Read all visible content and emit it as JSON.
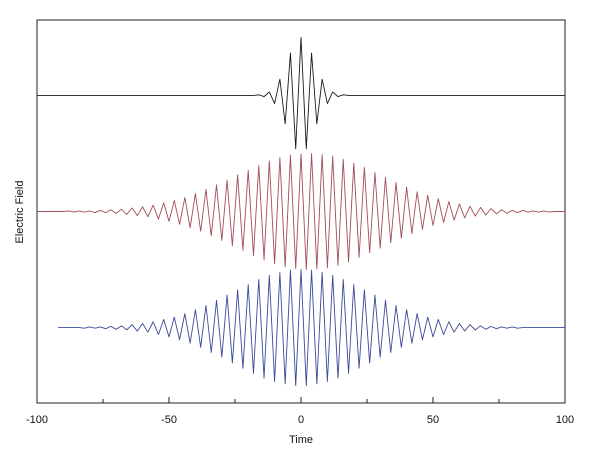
{
  "chart_data": {
    "type": "line",
    "x_label": "Time",
    "y_label": "Electric Field",
    "x": [
      -100,
      -98,
      -96,
      -94,
      -92,
      -90,
      -88,
      -86,
      -84,
      -82,
      -80,
      -78,
      -76,
      -74,
      -72,
      -70,
      -68,
      -66,
      -64,
      -62,
      -60,
      -58,
      -56,
      -54,
      -52,
      -50,
      -48,
      -46,
      -44,
      -42,
      -40,
      -38,
      -36,
      -34,
      -32,
      -30,
      -28,
      -26,
      -24,
      -22,
      -20,
      -18,
      -16,
      -14,
      -12,
      -10,
      -8,
      -6,
      -4,
      -2,
      0,
      2,
      4,
      6,
      8,
      10,
      12,
      14,
      16,
      18,
      20,
      22,
      24,
      26,
      28,
      30,
      32,
      34,
      36,
      38,
      40,
      42,
      44,
      46,
      48,
      50,
      52,
      54,
      56,
      58,
      60,
      62,
      64,
      66,
      68,
      70,
      72,
      74,
      76,
      78,
      80,
      82,
      84,
      86,
      88,
      90,
      92,
      94,
      96,
      98,
      100
    ],
    "series": [
      {
        "color": "#1a1a1a",
        "values": [
          5.3,
          5.3,
          5.3,
          5.3,
          5.3,
          5.3,
          5.3,
          5.3,
          5.3,
          5.3,
          5.3,
          5.3,
          5.3,
          5.3,
          5.3,
          5.3,
          5.3,
          5.3,
          5.3,
          5.3,
          5.3,
          5.3,
          5.3,
          5.3,
          5.3,
          5.3,
          5.3,
          5.3,
          5.3,
          5.3,
          5.3,
          5.3,
          5.3,
          5.3,
          5.3,
          5.3,
          5.3,
          5.3,
          5.3,
          5.3,
          5.3,
          5.3,
          5.31,
          5.28,
          5.36,
          5.16,
          5.58,
          4.81,
          6.03,
          4.38,
          6.3,
          4.38,
          6.03,
          4.81,
          5.58,
          5.16,
          5.36,
          5.28,
          5.31,
          5.3,
          5.3,
          5.3,
          5.3,
          5.3,
          5.3,
          5.3,
          5.3,
          5.3,
          5.3,
          5.3,
          5.3,
          5.3,
          5.3,
          5.3,
          5.3,
          5.3,
          5.3,
          5.3,
          5.3,
          5.3,
          5.3,
          5.3,
          5.3,
          5.3,
          5.3,
          5.3,
          5.3,
          5.3,
          5.3,
          5.3,
          5.3,
          5.3,
          5.3,
          5.3,
          5.3,
          5.3,
          5.3,
          5.3,
          5.3,
          5.3,
          5.3
        ]
      },
      {
        "color": "#a24f55",
        "values": [
          3.3,
          3.3,
          3.3,
          3.3,
          3.3,
          3.3,
          3.31,
          3.29,
          3.31,
          3.29,
          3.31,
          3.28,
          3.32,
          3.28,
          3.33,
          3.27,
          3.34,
          3.25,
          3.36,
          3.23,
          3.38,
          3.21,
          3.41,
          3.17,
          3.45,
          3.13,
          3.49,
          3.08,
          3.54,
          3.02,
          3.61,
          2.96,
          3.68,
          2.88,
          3.76,
          2.8,
          3.84,
          2.71,
          3.93,
          2.63,
          4.01,
          2.54,
          4.09,
          2.47,
          4.17,
          2.4,
          4.23,
          2.35,
          4.27,
          2.32,
          4.29,
          2.3,
          4.3,
          2.31,
          4.28,
          2.33,
          4.25,
          2.37,
          4.2,
          2.43,
          4.13,
          2.51,
          4.06,
          2.59,
          3.97,
          2.67,
          3.89,
          2.76,
          3.8,
          2.84,
          3.72,
          2.92,
          3.64,
          2.99,
          3.58,
          3.06,
          3.52,
          3.11,
          3.47,
          3.15,
          3.43,
          3.19,
          3.39,
          3.22,
          3.37,
          3.24,
          3.35,
          3.26,
          3.33,
          3.27,
          3.32,
          3.28,
          3.32,
          3.29,
          3.31,
          3.29,
          3.31,
          3.29,
          3.3,
          3.3,
          3.3
        ]
      },
      {
        "color": "#3b4a98",
        "values": [
          null,
          null,
          null,
          null,
          1.3,
          1.3,
          1.3,
          1.3,
          1.3,
          1.29,
          1.31,
          1.29,
          1.31,
          1.28,
          1.32,
          1.27,
          1.33,
          1.26,
          1.35,
          1.24,
          1.37,
          1.22,
          1.4,
          1.18,
          1.44,
          1.14,
          1.48,
          1.09,
          1.54,
          1.03,
          1.61,
          0.96,
          1.68,
          0.87,
          1.77,
          0.79,
          1.86,
          0.69,
          1.95,
          0.6,
          2.04,
          0.51,
          2.13,
          0.43,
          2.2,
          0.37,
          2.25,
          0.33,
          2.29,
          0.3,
          2.3,
          0.3,
          2.29,
          0.33,
          2.25,
          0.37,
          2.2,
          0.43,
          2.13,
          0.51,
          2.04,
          0.6,
          1.95,
          0.69,
          1.86,
          0.79,
          1.77,
          0.87,
          1.68,
          0.96,
          1.61,
          1.03,
          1.54,
          1.09,
          1.48,
          1.14,
          1.44,
          1.18,
          1.4,
          1.22,
          1.37,
          1.24,
          1.35,
          1.26,
          1.33,
          1.27,
          1.32,
          1.28,
          1.31,
          1.29,
          1.31,
          1.29,
          1.3,
          1.3,
          1.3,
          1.3,
          1.3,
          1.3,
          1.3,
          1.3,
          1.3
        ]
      }
    ],
    "xlim": [
      -100,
      100
    ],
    "xticks": [
      -100,
      -50,
      0,
      50,
      100
    ],
    "xminorticks": [
      -75,
      -25,
      25,
      75
    ],
    "ylim": [
      0,
      6.6
    ]
  }
}
